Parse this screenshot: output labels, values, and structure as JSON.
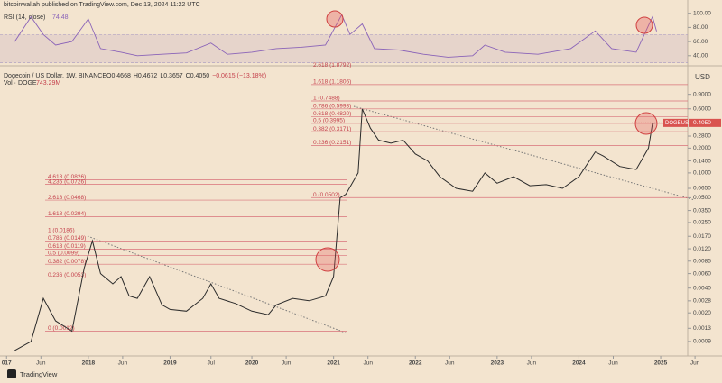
{
  "header": {
    "publisher": "bitcoinwallah published on TradingView.com, Dec 13, 2024 11:22 UTC",
    "footer": "TradingView"
  },
  "chart_data": [
    {
      "type": "line",
      "title": "Dogecoin / US Dollar, 1W, BINANCE",
      "stats": [
        "O0.4668",
        "H0.4672",
        "L0.3657",
        "C0.4050",
        "−0.0615 (−13.18%)"
      ],
      "volume_label": "Vol · DOGE",
      "volume_value": "743.29M",
      "currency": "USD",
      "symbol": "DOGEUSD",
      "last_price": {
        "value": 0.405,
        "label": "0.4050"
      },
      "color": "#2b2b2b",
      "log_scale": true,
      "x": [
        2017.1,
        2017.3,
        2017.45,
        2017.6,
        2017.8,
        2017.95,
        2018.05,
        2018.15,
        2018.3,
        2018.4,
        2018.5,
        2018.6,
        2018.75,
        2018.9,
        2019.0,
        2019.2,
        2019.4,
        2019.5,
        2019.6,
        2019.8,
        2020.0,
        2020.2,
        2020.3,
        2020.5,
        2020.7,
        2020.9,
        2021.0,
        2021.08,
        2021.15,
        2021.3,
        2021.35,
        2021.45,
        2021.55,
        2021.7,
        2021.85,
        2022.0,
        2022.15,
        2022.3,
        2022.5,
        2022.7,
        2022.85,
        2023.0,
        2023.2,
        2023.4,
        2023.6,
        2023.8,
        2024.0,
        2024.2,
        2024.3,
        2024.5,
        2024.7,
        2024.85,
        2024.9,
        2024.95
      ],
      "values": [
        0.0007,
        0.0009,
        0.003,
        0.0016,
        0.0012,
        0.007,
        0.015,
        0.006,
        0.0045,
        0.0055,
        0.0032,
        0.003,
        0.0055,
        0.0025,
        0.0022,
        0.0021,
        0.003,
        0.0045,
        0.003,
        0.0026,
        0.0021,
        0.0019,
        0.0025,
        0.003,
        0.0028,
        0.0032,
        0.0055,
        0.05,
        0.055,
        0.1,
        0.6,
        0.35,
        0.25,
        0.23,
        0.25,
        0.17,
        0.14,
        0.09,
        0.065,
        0.06,
        0.1,
        0.075,
        0.09,
        0.07,
        0.072,
        0.065,
        0.09,
        0.18,
        0.16,
        0.12,
        0.11,
        0.2,
        0.4,
        0.405
      ],
      "xlim": [
        2016.92,
        2025.75
      ],
      "xticks": [
        {
          "value": 2017,
          "label": "017"
        },
        {
          "value": 2017.42,
          "label": "Jun"
        },
        2018,
        {
          "value": 2018.42,
          "label": "Jun"
        },
        2019,
        {
          "value": 2019.5,
          "label": "Jul"
        },
        2020,
        {
          "value": 2020.42,
          "label": "Jun"
        },
        2021,
        {
          "value": 2021.42,
          "label": "Jun"
        },
        2022,
        {
          "value": 2022.42,
          "label": "Jun"
        },
        2023,
        {
          "value": 2023.42,
          "label": "Jun"
        },
        2024,
        {
          "value": 2024.42,
          "label": "Jun"
        },
        2025,
        {
          "value": 2025.42,
          "label": "Jun"
        }
      ],
      "ylim": [
        0.0006,
        1.9
      ],
      "yticks": [
        {
          "value": 0.9,
          "label": "0.9000"
        },
        {
          "value": 0.6,
          "label": "0.6000"
        },
        {
          "value": 0.28,
          "label": "0.2800"
        },
        {
          "value": 0.2,
          "label": "0.2000"
        },
        {
          "value": 0.14,
          "label": "0.1400"
        },
        {
          "value": 0.1,
          "label": "0.1000"
        },
        {
          "value": 0.065,
          "label": "0.0650"
        },
        {
          "value": 0.05,
          "label": "0.0500"
        },
        {
          "value": 0.035,
          "label": "0.0350"
        },
        {
          "value": 0.025,
          "label": "0.0250"
        },
        {
          "value": 0.017,
          "label": "0.0170"
        },
        {
          "value": 0.012,
          "label": "0.0120"
        },
        {
          "value": 0.0085,
          "label": "0.0085"
        },
        {
          "value": 0.006,
          "label": "0.0060"
        },
        {
          "value": 0.004,
          "label": "0.0040"
        },
        {
          "value": 0.0028,
          "label": "0.0028"
        },
        {
          "value": 0.002,
          "label": "0.0020"
        },
        {
          "value": 0.0013,
          "label": "0.0013"
        },
        {
          "value": 0.0009,
          "label": "0.0009"
        }
      ],
      "fib_upper": [
        {
          "value": 1.8792,
          "label": "2.618 (1.8792)"
        },
        {
          "value": 1.1806,
          "label": "1.618 (1.1806)"
        },
        {
          "value": 0.7488,
          "label": "1 (0.7488)"
        },
        {
          "value": 0.5993,
          "label": "0.786 (0.5993)"
        },
        {
          "value": 0.482,
          "label": "0.618 (0.4820)"
        },
        {
          "value": 0.3995,
          "label": "0.5 (0.3995)"
        },
        {
          "value": 0.3171,
          "label": "0.382 (0.3171)"
        },
        {
          "value": 0.2151,
          "label": "0.236 (0.2151)"
        },
        {
          "value": 0.0502,
          "label": "0 (0.0502)"
        }
      ],
      "fib_lower": [
        {
          "value": 0.0826,
          "label": "4.618 (0.0826)"
        },
        {
          "value": 0.0726,
          "label": "4.236 (0.0726)"
        },
        {
          "value": 0.0468,
          "label": "2.618 (0.0468)"
        },
        {
          "value": 0.0294,
          "label": "1.618 (0.0294)"
        },
        {
          "value": 0.0186,
          "label": "1 (0.0186)"
        },
        {
          "value": 0.0149,
          "label": "0.786 (0.0149)"
        },
        {
          "value": 0.0119,
          "label": "0.618 (0.0119)"
        },
        {
          "value": 0.0099,
          "label": "0.5 (0.0099)"
        },
        {
          "value": 0.0078,
          "label": "0.382 (0.0078)"
        },
        {
          "value": 0.0053,
          "label": "0.236 (0.0053)"
        },
        {
          "value": 0.0012,
          "label": "0 (0.0012)"
        }
      ],
      "fib_color": "#d9727a"
    },
    {
      "type": "line",
      "title": "RSI (14, close)",
      "last": 74.48,
      "color": "#8a63b8",
      "x": [
        2017.1,
        2017.3,
        2017.45,
        2017.6,
        2017.8,
        2018.0,
        2018.15,
        2018.4,
        2018.6,
        2018.9,
        2019.2,
        2019.5,
        2019.7,
        2020.0,
        2020.3,
        2020.6,
        2020.9,
        2021.1,
        2021.2,
        2021.35,
        2021.5,
        2021.8,
        2022.1,
        2022.4,
        2022.7,
        2022.85,
        2023.1,
        2023.5,
        2023.9,
        2024.2,
        2024.4,
        2024.7,
        2024.9,
        2024.95
      ],
      "values": [
        60,
        95,
        70,
        55,
        60,
        92,
        50,
        45,
        40,
        42,
        44,
        58,
        42,
        45,
        50,
        52,
        55,
        98,
        70,
        85,
        50,
        48,
        42,
        38,
        40,
        55,
        45,
        42,
        50,
        75,
        50,
        45,
        95,
        74.48
      ],
      "band": [
        30,
        70
      ],
      "ylim": [
        27,
        106
      ],
      "yticks": [
        {
          "value": 100,
          "label": "100.00"
        },
        {
          "value": 80,
          "label": "80.00"
        },
        {
          "value": 60,
          "label": "60.00"
        },
        {
          "value": 40,
          "label": "40.00"
        }
      ]
    }
  ]
}
